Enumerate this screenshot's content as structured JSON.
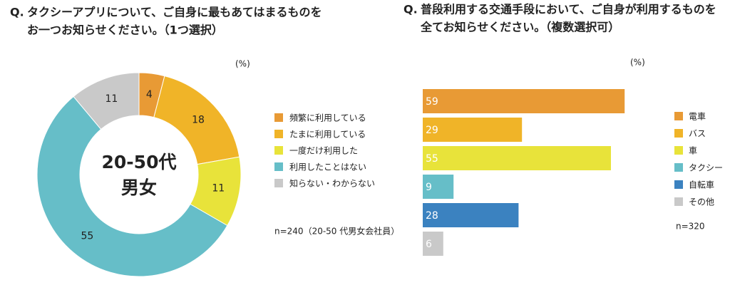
{
  "chart_data": [
    {
      "type": "donut",
      "q_label": "Q.",
      "title": [
        "タクシーアプリについて、ご自身に最もあてはまるものを",
        "お一つお知らせください。（1つ選択）"
      ],
      "center_label": [
        "20-50代",
        "男女"
      ],
      "unit": "(%)",
      "note": "n=240（20-50 代男女会社員）",
      "categories": [
        "頻繁に利用している",
        "たまに利用している",
        "一度だけ利用した",
        "利用したことはない",
        "知らない・わからない"
      ],
      "values": [
        4,
        18,
        11,
        55,
        11
      ],
      "colors": [
        "#e89a35",
        "#f0b428",
        "#e8e33a",
        "#66bec8",
        "#c9c9c9"
      ]
    },
    {
      "type": "hbar",
      "q_label": "Q.",
      "title": [
        "普段利用する交通手段において、ご自身が利用するものを",
        "全てお知らせください。（複数選択可）"
      ],
      "unit": "(%)",
      "note": "n=320",
      "categories": [
        "電車",
        "バス",
        "車",
        "タクシー",
        "自転車",
        "その他"
      ],
      "values": [
        59,
        29,
        55,
        9,
        28,
        6
      ],
      "colors": [
        "#e89a35",
        "#f0b428",
        "#e8e33a",
        "#66bec8",
        "#3b82c0",
        "#c9c9c9"
      ],
      "xlim": [
        0,
        60
      ]
    }
  ]
}
